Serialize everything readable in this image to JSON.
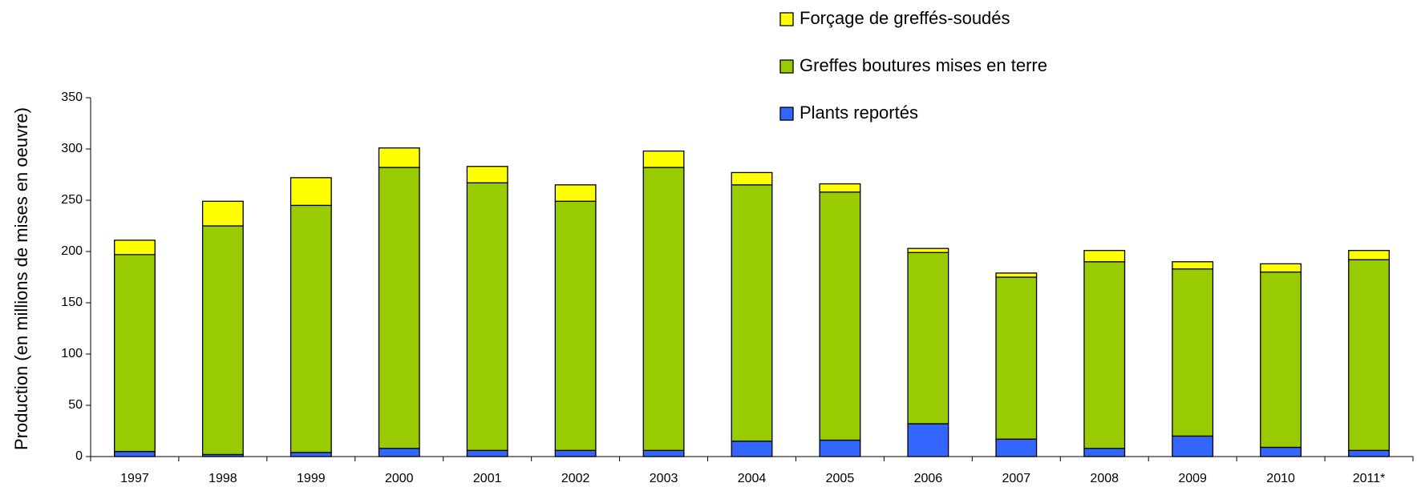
{
  "chart_data": {
    "type": "stacked_bar",
    "y_axis_label": "Production (en millions de mises en oeuvre)",
    "categories": [
      "1997",
      "1998",
      "1999",
      "2000",
      "2001",
      "2002",
      "2003",
      "2004",
      "2005",
      "2006",
      "2007",
      "2008",
      "2009",
      "2010",
      "2011*"
    ],
    "series": [
      {
        "name": "Plants reportés",
        "color": "#3366ff",
        "values": [
          5,
          2,
          4,
          8,
          6,
          6,
          6,
          15,
          16,
          32,
          17,
          8,
          20,
          9,
          6
        ]
      },
      {
        "name": "Greffes boutures mises en terre",
        "color": "#99cc00",
        "values": [
          192,
          223,
          241,
          274,
          261,
          243,
          276,
          250,
          242,
          167,
          158,
          182,
          163,
          171,
          186
        ]
      },
      {
        "name": "Forçage de greffés-soudés",
        "color": "#ffff00",
        "values": [
          14,
          24,
          27,
          19,
          16,
          16,
          16,
          12,
          8,
          4,
          4,
          11,
          7,
          8,
          9
        ]
      }
    ],
    "ylim": [
      0,
      350
    ],
    "yticks": [
      0,
      50,
      100,
      150,
      200,
      250,
      300,
      350
    ],
    "grid": false,
    "legend": "top-right"
  }
}
